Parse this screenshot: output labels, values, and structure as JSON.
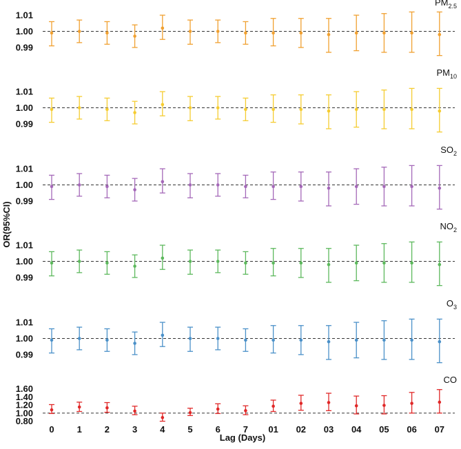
{
  "chart_data": {
    "type": "scatter",
    "title": "",
    "ylabel": "OR(95%CI)",
    "xlabel": "Lag (Days)",
    "categories": [
      "0",
      "1",
      "2",
      "3",
      "4",
      "5",
      "6",
      "7",
      "01",
      "02",
      "03",
      "04",
      "05",
      "06",
      "07"
    ],
    "reference_line": 1.0,
    "panels": [
      {
        "name": "PM2.5",
        "label_main": "PM",
        "label_sub": "2.5",
        "color": "#F0A030",
        "ylim": [
          0.984,
          1.016
        ],
        "yticks": [
          "1.01",
          "1.00",
          "0.99"
        ],
        "ytick_values": [
          1.01,
          1.0,
          0.99
        ],
        "or": [
          0.999,
          1.0,
          0.999,
          0.997,
          1.002,
          1.0,
          1.0,
          0.999,
          0.999,
          0.999,
          0.998,
          0.999,
          0.999,
          0.999,
          0.998
        ],
        "lower": [
          0.991,
          0.993,
          0.992,
          0.99,
          0.995,
          0.992,
          0.993,
          0.992,
          0.991,
          0.99,
          0.987,
          0.988,
          0.987,
          0.987,
          0.985
        ],
        "upper": [
          1.006,
          1.007,
          1.006,
          1.004,
          1.01,
          1.007,
          1.007,
          1.006,
          1.008,
          1.008,
          1.008,
          1.01,
          1.011,
          1.012,
          1.012
        ]
      },
      {
        "name": "PM10",
        "label_main": "PM",
        "label_sub": "10",
        "color": "#F5CC30",
        "ylim": [
          0.984,
          1.016
        ],
        "yticks": [
          "1.01",
          "1.00",
          "0.99"
        ],
        "ytick_values": [
          1.01,
          1.0,
          0.99
        ],
        "or": [
          0.999,
          1.0,
          0.999,
          0.997,
          1.002,
          1.0,
          1.0,
          0.999,
          0.999,
          0.999,
          0.998,
          0.999,
          0.999,
          0.999,
          0.998
        ],
        "lower": [
          0.991,
          0.993,
          0.992,
          0.99,
          0.995,
          0.992,
          0.993,
          0.992,
          0.991,
          0.99,
          0.987,
          0.988,
          0.987,
          0.987,
          0.985
        ],
        "upper": [
          1.006,
          1.007,
          1.006,
          1.004,
          1.01,
          1.007,
          1.007,
          1.006,
          1.008,
          1.008,
          1.008,
          1.01,
          1.011,
          1.012,
          1.012
        ]
      },
      {
        "name": "SO2",
        "label_main": "SO",
        "label_sub": "2",
        "color": "#A468B8",
        "ylim": [
          0.984,
          1.016
        ],
        "yticks": [
          "1.01",
          "1.00",
          "0.99"
        ],
        "ytick_values": [
          1.01,
          1.0,
          0.99
        ],
        "or": [
          0.999,
          1.0,
          0.999,
          0.997,
          1.002,
          1.0,
          1.0,
          0.999,
          0.999,
          0.999,
          0.998,
          0.999,
          0.999,
          0.999,
          0.998
        ],
        "lower": [
          0.991,
          0.993,
          0.992,
          0.99,
          0.995,
          0.992,
          0.993,
          0.992,
          0.991,
          0.99,
          0.987,
          0.988,
          0.987,
          0.987,
          0.985
        ],
        "upper": [
          1.006,
          1.007,
          1.006,
          1.004,
          1.01,
          1.007,
          1.007,
          1.006,
          1.008,
          1.008,
          1.008,
          1.01,
          1.011,
          1.012,
          1.012
        ]
      },
      {
        "name": "NO2",
        "label_main": "NO",
        "label_sub": "2",
        "color": "#5CB85C",
        "ylim": [
          0.984,
          1.016
        ],
        "yticks": [
          "1.01",
          "1.00",
          "0.99"
        ],
        "ytick_values": [
          1.01,
          1.0,
          0.99
        ],
        "or": [
          0.999,
          1.0,
          0.999,
          0.997,
          1.002,
          1.0,
          1.0,
          0.999,
          0.999,
          0.999,
          0.998,
          0.999,
          0.999,
          0.999,
          0.998
        ],
        "lower": [
          0.991,
          0.993,
          0.992,
          0.99,
          0.995,
          0.992,
          0.993,
          0.992,
          0.991,
          0.99,
          0.987,
          0.988,
          0.987,
          0.987,
          0.985
        ],
        "upper": [
          1.006,
          1.007,
          1.006,
          1.004,
          1.01,
          1.007,
          1.007,
          1.006,
          1.008,
          1.008,
          1.008,
          1.01,
          1.011,
          1.012,
          1.012
        ]
      },
      {
        "name": "O3",
        "label_main": "O",
        "label_sub": "3",
        "color": "#4A90C8",
        "ylim": [
          0.984,
          1.016
        ],
        "yticks": [
          "1.01",
          "1.00",
          "0.99"
        ],
        "ytick_values": [
          1.01,
          1.0,
          0.99
        ],
        "or": [
          0.999,
          1.0,
          0.999,
          0.997,
          1.002,
          1.0,
          1.0,
          0.999,
          0.999,
          0.999,
          0.998,
          0.999,
          0.999,
          0.999,
          0.998
        ],
        "lower": [
          0.991,
          0.993,
          0.992,
          0.99,
          0.995,
          0.992,
          0.993,
          0.992,
          0.991,
          0.99,
          0.987,
          0.988,
          0.987,
          0.987,
          0.985
        ],
        "upper": [
          1.006,
          1.007,
          1.006,
          1.004,
          1.01,
          1.007,
          1.007,
          1.006,
          1.008,
          1.008,
          1.008,
          1.01,
          1.011,
          1.012,
          1.012
        ]
      },
      {
        "name": "CO",
        "label_main": "CO",
        "label_sub": "",
        "color": "#E02828",
        "ylim": [
          0.76,
          1.66
        ],
        "yticks": [
          "1.60",
          "1.40",
          "1.20",
          "1.00",
          "0.80"
        ],
        "ytick_values": [
          1.6,
          1.4,
          1.2,
          1.0,
          0.8
        ],
        "or": [
          1.08,
          1.15,
          1.13,
          1.05,
          0.89,
          1.01,
          1.1,
          1.06,
          1.17,
          1.24,
          1.26,
          1.18,
          1.19,
          1.24,
          1.27
        ],
        "lower": [
          0.99,
          1.04,
          1.02,
          0.96,
          0.8,
          0.94,
          0.99,
          0.96,
          1.04,
          1.07,
          1.06,
          0.98,
          0.98,
          1.0,
          1.0
        ],
        "upper": [
          1.21,
          1.27,
          1.26,
          1.17,
          1.0,
          1.12,
          1.23,
          1.18,
          1.32,
          1.44,
          1.49,
          1.42,
          1.43,
          1.51,
          1.58
        ]
      }
    ]
  }
}
